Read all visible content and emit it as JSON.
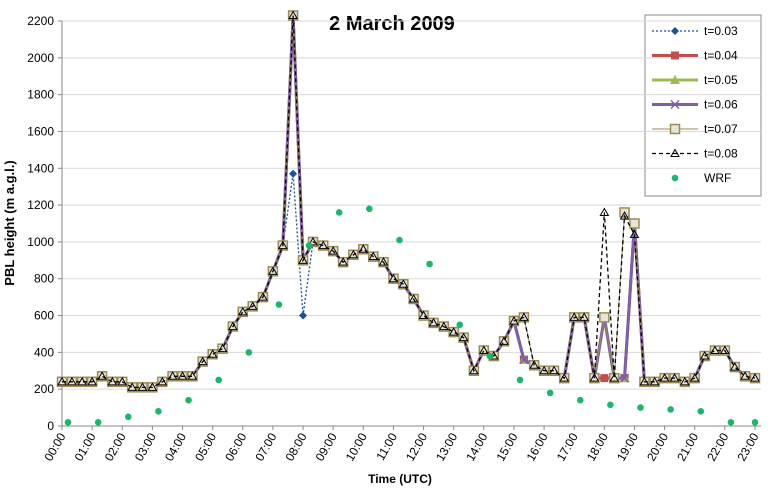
{
  "chart_data": {
    "type": "line",
    "title": "2 March 2009",
    "x_label": "Time (UTC)",
    "y_label": "PBL height (m a.g.l.)",
    "xlim": [
      0,
      23
    ],
    "ylim": [
      0,
      2200
    ],
    "yticks": [
      0,
      200,
      400,
      600,
      800,
      1000,
      1200,
      1400,
      1600,
      1800,
      2000,
      2200
    ],
    "xticks": [
      {
        "value": 0,
        "label": "00:00"
      },
      {
        "value": 1,
        "label": "01:00"
      },
      {
        "value": 2,
        "label": "02:00"
      },
      {
        "value": 3,
        "label": "03:00"
      },
      {
        "value": 4,
        "label": "04:00"
      },
      {
        "value": 5,
        "label": "05:00"
      },
      {
        "value": 6,
        "label": "06:00"
      },
      {
        "value": 7,
        "label": "07:00"
      },
      {
        "value": 8,
        "label": "08:00"
      },
      {
        "value": 9,
        "label": "09:00"
      },
      {
        "value": 10,
        "label": "10:00"
      },
      {
        "value": 11,
        "label": "11:00"
      },
      {
        "value": 12,
        "label": "12:00"
      },
      {
        "value": 13,
        "label": "13:00"
      },
      {
        "value": 14,
        "label": "14:00"
      },
      {
        "value": 15,
        "label": "15:00"
      },
      {
        "value": 16,
        "label": "16:00"
      },
      {
        "value": 17,
        "label": "17:00"
      },
      {
        "value": 18,
        "label": "18:00"
      },
      {
        "value": 19,
        "label": "19:00"
      },
      {
        "value": 20,
        "label": "20:00"
      },
      {
        "value": 21,
        "label": "21:00"
      },
      {
        "value": 22,
        "label": "22:00"
      },
      {
        "value": 23,
        "label": "23:00"
      }
    ],
    "grid": true,
    "legend": "top-right",
    "x": [
      0,
      0.33,
      0.67,
      1,
      1.33,
      1.67,
      2,
      2.33,
      2.67,
      3,
      3.33,
      3.67,
      4,
      4.33,
      4.67,
      5,
      5.33,
      5.67,
      6,
      6.33,
      6.67,
      7,
      7.33,
      7.67,
      8,
      8.33,
      8.67,
      9,
      9.33,
      9.67,
      10,
      10.33,
      10.67,
      11,
      11.33,
      11.67,
      12,
      12.33,
      12.67,
      13,
      13.33,
      13.67,
      14,
      14.33,
      14.67,
      15,
      15.33,
      15.67,
      16,
      16.33,
      16.67,
      17,
      17.33,
      17.67,
      18,
      18.33,
      18.67,
      19,
      19.33,
      19.67,
      20,
      20.33,
      20.67,
      21,
      21.33,
      21.67,
      22,
      22.33,
      22.67,
      23
    ],
    "series": [
      {
        "name": "t=0.03",
        "color": "#1f4e9a",
        "marker": "diamond",
        "line_style": "dotted",
        "values": [
          240,
          240,
          240,
          240,
          270,
          240,
          240,
          210,
          210,
          210,
          240,
          270,
          270,
          270,
          350,
          390,
          420,
          540,
          620,
          650,
          700,
          840,
          980,
          1370,
          600,
          1000,
          980,
          950,
          890,
          930,
          960,
          920,
          890,
          800,
          770,
          690,
          600,
          560,
          540,
          510,
          480,
          300,
          410,
          380,
          460,
          570,
          360,
          330,
          300,
          300,
          260,
          590,
          590,
          260,
          590,
          260,
          260,
          1100,
          240,
          240,
          260,
          260,
          240,
          260,
          380,
          410,
          410,
          320,
          270,
          260
        ]
      },
      {
        "name": "t=0.04",
        "color": "#c0504d",
        "marker": "square",
        "line_style": "solid",
        "values": [
          240,
          240,
          240,
          240,
          270,
          240,
          240,
          210,
          210,
          210,
          240,
          270,
          270,
          270,
          350,
          390,
          420,
          540,
          620,
          650,
          700,
          840,
          980,
          2230,
          900,
          1000,
          980,
          950,
          890,
          930,
          960,
          920,
          890,
          800,
          770,
          690,
          600,
          560,
          540,
          510,
          480,
          300,
          410,
          380,
          460,
          570,
          360,
          330,
          300,
          300,
          260,
          590,
          590,
          260,
          260,
          260,
          260,
          1100,
          240,
          240,
          260,
          260,
          240,
          260,
          380,
          410,
          410,
          320,
          270,
          260
        ]
      },
      {
        "name": "t=0.05",
        "color": "#9bbb59",
        "marker": "triangle",
        "line_style": "solid",
        "values": [
          240,
          240,
          240,
          240,
          270,
          240,
          240,
          210,
          210,
          210,
          240,
          270,
          270,
          270,
          350,
          390,
          420,
          540,
          620,
          650,
          700,
          840,
          980,
          2230,
          900,
          1000,
          980,
          950,
          890,
          930,
          960,
          920,
          890,
          800,
          770,
          690,
          600,
          560,
          540,
          510,
          480,
          300,
          410,
          380,
          460,
          570,
          360,
          330,
          300,
          300,
          260,
          590,
          590,
          260,
          590,
          260,
          260,
          1100,
          240,
          240,
          260,
          260,
          240,
          260,
          380,
          410,
          410,
          320,
          270,
          260
        ]
      },
      {
        "name": "t=0.06",
        "color": "#7f5fa5",
        "marker": "cross",
        "line_style": "solid",
        "values": [
          240,
          240,
          240,
          240,
          270,
          240,
          240,
          210,
          210,
          210,
          240,
          270,
          270,
          270,
          350,
          390,
          420,
          540,
          620,
          650,
          700,
          840,
          980,
          2230,
          900,
          1000,
          980,
          950,
          890,
          930,
          960,
          920,
          890,
          800,
          770,
          690,
          600,
          560,
          540,
          510,
          480,
          300,
          410,
          380,
          460,
          570,
          360,
          330,
          300,
          300,
          260,
          590,
          590,
          260,
          590,
          260,
          260,
          1100,
          240,
          240,
          260,
          260,
          240,
          260,
          380,
          410,
          410,
          320,
          270,
          260
        ]
      },
      {
        "name": "t=0.07",
        "color": "#9c8a55",
        "marker": "open-square",
        "line_style": "solid",
        "values": [
          240,
          240,
          240,
          240,
          270,
          240,
          240,
          210,
          210,
          210,
          240,
          270,
          270,
          270,
          350,
          390,
          420,
          540,
          620,
          650,
          700,
          840,
          980,
          2230,
          900,
          1000,
          980,
          950,
          890,
          930,
          960,
          920,
          890,
          800,
          770,
          690,
          600,
          560,
          540,
          510,
          480,
          300,
          410,
          380,
          460,
          570,
          590,
          330,
          300,
          300,
          260,
          590,
          590,
          260,
          590,
          260,
          1160,
          1100,
          240,
          240,
          260,
          260,
          240,
          260,
          380,
          410,
          410,
          320,
          270,
          260
        ]
      },
      {
        "name": "t=0.08",
        "color": "#000000",
        "marker": "open-triangle",
        "line_style": "dashed",
        "values": [
          240,
          240,
          240,
          240,
          270,
          240,
          240,
          210,
          210,
          210,
          240,
          270,
          270,
          270,
          350,
          390,
          420,
          540,
          620,
          650,
          700,
          840,
          980,
          2230,
          900,
          1000,
          980,
          950,
          890,
          930,
          960,
          920,
          890,
          800,
          770,
          690,
          600,
          560,
          540,
          510,
          480,
          300,
          410,
          380,
          460,
          570,
          590,
          330,
          300,
          300,
          260,
          590,
          590,
          260,
          1160,
          260,
          1140,
          1040,
          240,
          240,
          260,
          260,
          240,
          260,
          380,
          410,
          410,
          320,
          270,
          260
        ]
      },
      {
        "name": "WRF",
        "color": "#1db56a",
        "marker": "circle",
        "line_style": "none",
        "x": [
          0.2,
          1.2,
          2.2,
          3.2,
          4.2,
          5.2,
          6.2,
          7.2,
          8.2,
          9.2,
          10.2,
          11.2,
          12.2,
          13.2,
          14.2,
          15.2,
          16.2,
          17.2,
          18.2,
          19.2,
          20.2,
          21.2,
          22.2,
          23
        ],
        "values": [
          20,
          20,
          50,
          80,
          140,
          250,
          400,
          660,
          980,
          1160,
          1180,
          1010,
          880,
          550,
          380,
          250,
          180,
          140,
          115,
          100,
          90,
          80,
          20,
          20
        ]
      }
    ]
  }
}
